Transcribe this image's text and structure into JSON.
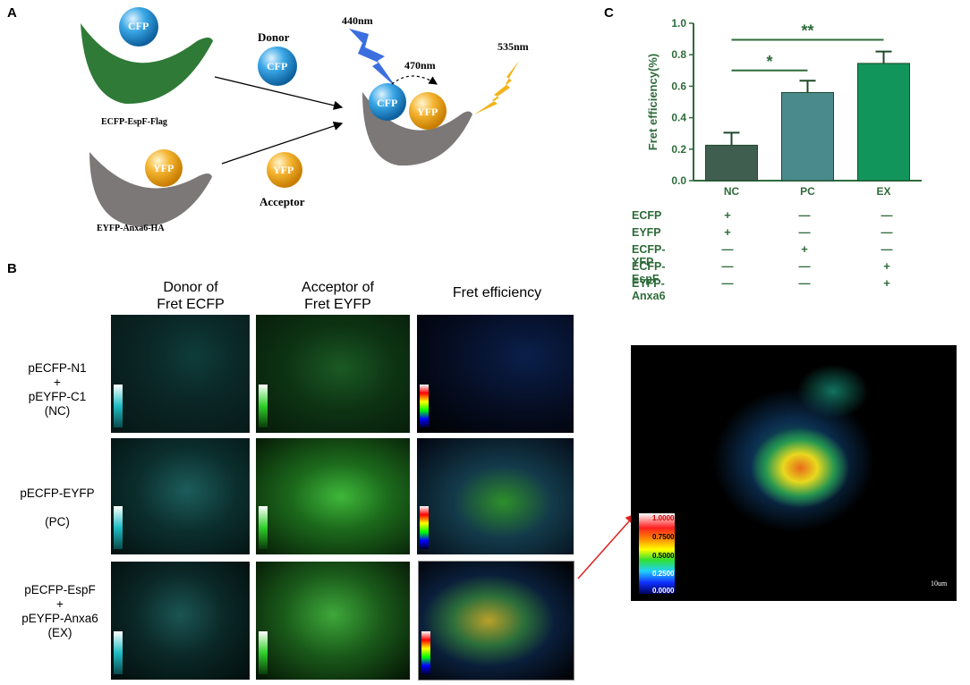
{
  "panel_a": {
    "letter": "A",
    "cfp_label": "CFP",
    "yfp_label": "YFP",
    "ecfp_construct": "ECFP-EspF-Flag",
    "eyfp_construct": "EYFP-Anxa6-HA",
    "donor": "Donor",
    "acceptor": "Acceptor",
    "excitation": "440nm",
    "emission_cfp": "470nm",
    "emission_yfp": "535nm"
  },
  "panel_b": {
    "letter": "B",
    "columns": [
      "Donor of\nFret ECFP",
      "Acceptor of\nFret EYFP",
      "Fret efficiency"
    ],
    "rows": [
      {
        "label": "pECFP-N1\n+\npEYFP-C1\n(NC)"
      },
      {
        "label": "pECFP-EYFP\n(PC)"
      },
      {
        "label": "pECFP-EspF\n+\npEYFP-Anxa6\n(EX)"
      }
    ],
    "enlarged_scale": {
      "ticks": [
        "1.0000",
        "0.7500",
        "0.5000",
        "0.2500",
        "0.0000"
      ],
      "scalebar": "10um"
    }
  },
  "panel_c": {
    "letter": "C",
    "chart_data": {
      "type": "bar",
      "categories": [
        "NC",
        "PC",
        "EX"
      ],
      "values": [
        0.225,
        0.56,
        0.745
      ],
      "errors": [
        0.08,
        0.075,
        0.075
      ],
      "colors": [
        "#3f5e4f",
        "#4a8a8c",
        "#12955b"
      ],
      "ylabel": "Fret efficiency(%)",
      "ylim": [
        0,
        1.0
      ],
      "yticks": [
        "0.0",
        "0.2",
        "0.4",
        "0.6",
        "0.8",
        "1.0"
      ],
      "significance": [
        {
          "from": "NC",
          "to": "PC",
          "label": "*"
        },
        {
          "from": "NC",
          "to": "EX",
          "label": "**"
        }
      ],
      "axis_color": "#2e6b3a"
    },
    "table": {
      "rows": [
        {
          "name": "ECFP",
          "marks": [
            "+",
            "—",
            "—"
          ]
        },
        {
          "name": "EYFP",
          "marks": [
            "+",
            "—",
            "—"
          ]
        },
        {
          "name": "ECFP-YFP",
          "marks": [
            "—",
            "+",
            "—"
          ]
        },
        {
          "name": "ECFP-EspF",
          "marks": [
            "—",
            "—",
            "+"
          ]
        },
        {
          "name": "EYFP-Anxa6",
          "marks": [
            "—",
            "—",
            "+"
          ]
        }
      ]
    }
  }
}
